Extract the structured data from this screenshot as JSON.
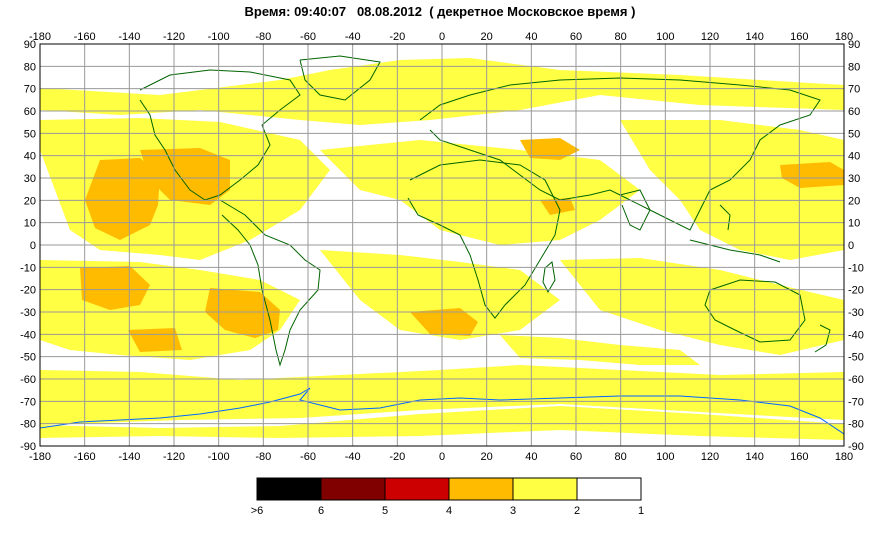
{
  "title": "Время: 09:40:07   08.08.2012  ( декретное Московское время )",
  "map": {
    "lon_ticks": [
      -180,
      -160,
      -140,
      -120,
      -100,
      -80,
      -60,
      -40,
      -20,
      0,
      20,
      40,
      60,
      80,
      100,
      120,
      140,
      160,
      180
    ],
    "lat_ticks": [
      90,
      80,
      70,
      60,
      50,
      40,
      30,
      20,
      10,
      0,
      -10,
      -20,
      -30,
      -40,
      -50,
      -60,
      -70,
      -80,
      -90
    ],
    "lon_range": [
      -180,
      180
    ],
    "lat_range": [
      -90,
      90
    ],
    "grid": true
  },
  "legend": {
    "bins": [
      {
        "color": "#000000",
        "label": ">6"
      },
      {
        "color": "#800000",
        "label": "6"
      },
      {
        "color": "#cc0000",
        "label": "5"
      },
      {
        "color": "#ffbb00",
        "label": "4"
      },
      {
        "color": "#ffff44",
        "label": "3"
      },
      {
        "color": "#ffffff",
        "label": "2"
      }
    ],
    "end_label": "1"
  },
  "colors": {
    "level2": "#ffff44",
    "level3": "#ffbb00",
    "coast": "#006400",
    "ice": "#0066ff",
    "grid": "#999999"
  }
}
